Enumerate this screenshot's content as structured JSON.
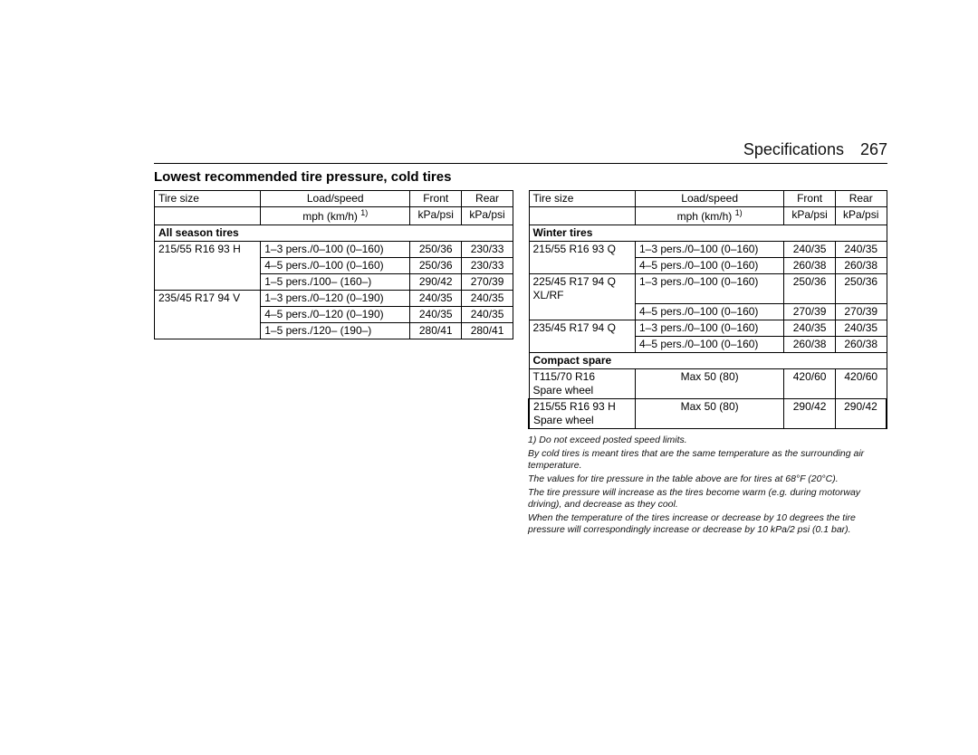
{
  "header": {
    "section": "Specifications",
    "page": "267"
  },
  "title": "Lowest recommended tire pressure, cold tires",
  "column_headers": {
    "tire_size": "Tire size",
    "load_speed_1": "Load/speed",
    "load_speed_2": "mph (km/h)",
    "load_speed_sup": "1)",
    "front_1": "Front",
    "front_2": "kPa/psi",
    "rear_1": "Rear",
    "rear_2": "kPa/psi"
  },
  "left": {
    "section1": "All season tires",
    "rows": [
      {
        "tire": "215/55 R16 93 H",
        "load": "1–3 pers./0–100 (0–160)",
        "front": "250/36",
        "rear": "230/33"
      },
      {
        "tire": "",
        "load": "4–5 pers./0–100 (0–160)",
        "front": "250/36",
        "rear": "230/33"
      },
      {
        "tire": "",
        "load": "1–5 pers./100– (160–)",
        "front": "290/42",
        "rear": "270/39"
      },
      {
        "tire": "235/45 R17 94 V",
        "load": "1–3 pers./0–120 (0–190)",
        "front": "240/35",
        "rear": "240/35"
      },
      {
        "tire": "",
        "load": "4–5 pers./0–120 (0–190)",
        "front": "240/35",
        "rear": "240/35"
      },
      {
        "tire": "",
        "load": "1–5 pers./120– (190–)",
        "front": "280/41",
        "rear": "280/41"
      }
    ]
  },
  "right": {
    "section1": "Winter tires",
    "rows1": [
      {
        "tire": "215/55 R16 93 Q",
        "load": "1–3 pers./0–100 (0–160)",
        "front": "240/35",
        "rear": "240/35"
      },
      {
        "tire": "",
        "load": "4–5 pers./0–100 (0–160)",
        "front": "260/38",
        "rear": "260/38"
      },
      {
        "tire": "225/45 R17 94 Q\nXL/RF",
        "load": "1–3 pers./0–100 (0–160)",
        "front": "250/36",
        "rear": "250/36"
      },
      {
        "tire": "",
        "load": "4–5 pers./0–100 (0–160)",
        "front": "270/39",
        "rear": "270/39"
      },
      {
        "tire": "235/45 R17 94 Q",
        "load": "1–3 pers./0–100 (0–160)",
        "front": "240/35",
        "rear": "240/35"
      },
      {
        "tire": "",
        "load": "4–5 pers./0–100 (0–160)",
        "front": "260/38",
        "rear": "260/38"
      }
    ],
    "section2": "Compact spare",
    "rows2": [
      {
        "tire": "T115/70 R16\nSpare wheel",
        "load": "Max 50 (80)",
        "front": "420/60",
        "rear": "420/60",
        "hl": false
      },
      {
        "tire": "215/55 R16 93 H\nSpare wheel",
        "load": "Max 50 (80)",
        "front": "290/42",
        "rear": "290/42",
        "hl": true
      }
    ]
  },
  "footnotes": [
    "1) Do not exceed posted speed limits.",
    "By cold tires is meant tires that are the same temperature as the surrounding air temperature.",
    "The values for tire pressure in the table above are for tires at 68°F (20°C).",
    "The tire pressure will increase as the tires become warm (e.g. during motorway driving), and decrease as they cool.",
    "When the temperature of the tires increase or decrease by 10 degrees the tire pressure will correspondingly increase or decrease by 10 kPa/2 psi (0.1 bar)."
  ],
  "colors": {
    "bg": "#ffffff",
    "text": "#000000",
    "border": "#000000"
  }
}
